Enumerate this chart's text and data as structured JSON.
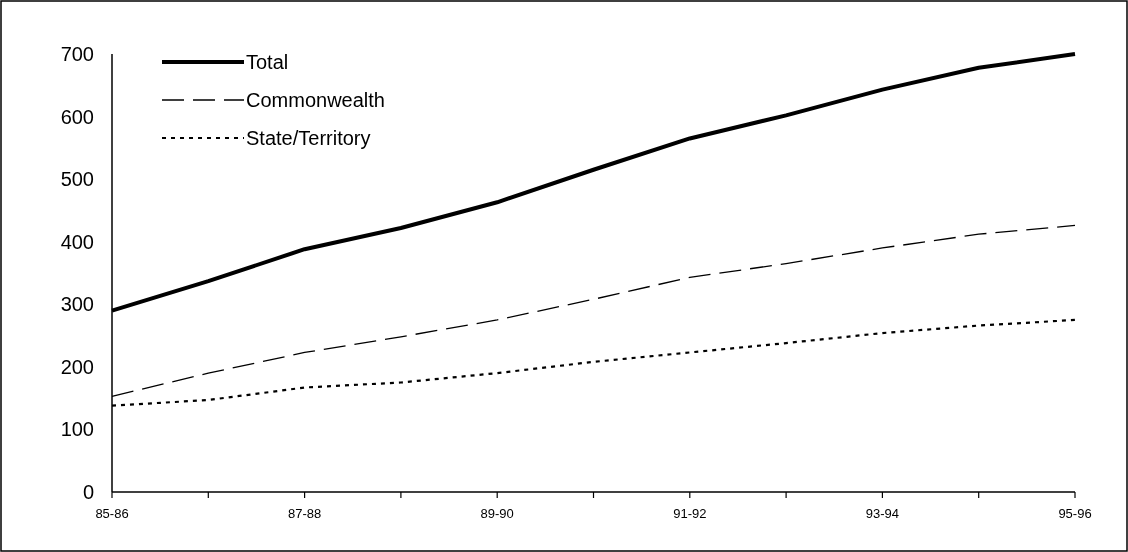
{
  "chart_data": {
    "type": "line",
    "categories": [
      "85-86",
      null,
      "87-88",
      null,
      "89-90",
      null,
      "91-92",
      null,
      "93-94",
      null,
      "95-96"
    ],
    "series": [
      {
        "name": "Total",
        "color": "#000000",
        "line_style": "solid",
        "values": [
          290,
          337,
          388,
          422,
          463,
          515,
          565,
          602,
          643,
          678,
          700
        ]
      },
      {
        "name": "Commonwealth",
        "color": "#000000",
        "line_style": "dashed",
        "values": [
          153,
          190,
          223,
          248,
          275,
          308,
          343,
          365,
          390,
          412,
          426
        ]
      },
      {
        "name": "State/Territory",
        "color": "#000000",
        "line_style": "dotted",
        "values": [
          138,
          147,
          167,
          175,
          190,
          208,
          223,
          238,
          254,
          266,
          275
        ]
      }
    ],
    "ylim": [
      0,
      700
    ],
    "yticks": [
      0,
      100,
      200,
      300,
      400,
      500,
      600,
      700
    ],
    "legend": "top left",
    "marker": "none",
    "grid": false
  }
}
